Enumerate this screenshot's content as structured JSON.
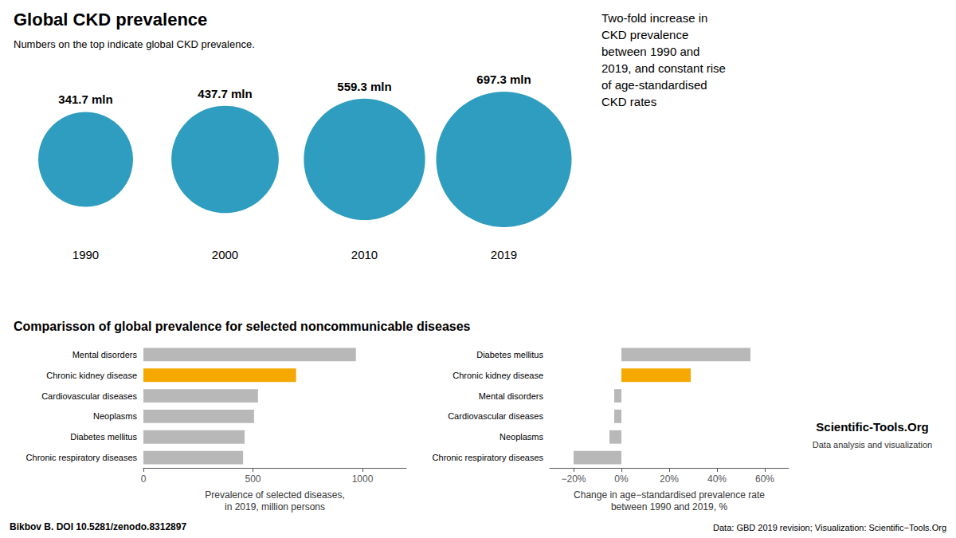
{
  "chart_data": [
    {
      "type": "bubble",
      "title": "Global CKD prevalence",
      "subtitle": "Numbers on the top indicate global CKD prevalence.",
      "categories": [
        "1990",
        "2000",
        "2010",
        "2019"
      ],
      "values": [
        341.7,
        437.7,
        559.3,
        697.3
      ],
      "value_labels": [
        "341.7 mln",
        "437.7 mln",
        "559.3 mln",
        "697.3 mln"
      ],
      "data_labels": true,
      "color": "#2e9dbf",
      "tick_labels": "x",
      "annotations": [
        "Two-fold increase in\nCKD prevalence\nbetween 1990 and\n2019, and constant rise\nof age-standardised\nCKD rates"
      ]
    },
    {
      "type": "bar",
      "orientation": "horizontal",
      "title": "Comparisson of global prevalence for selected noncommunicable diseases",
      "categories": [
        "Mental disorders",
        "Chronic kidney disease",
        "Cardiovascular diseases",
        "Neoplasms",
        "Diabetes mellitus",
        "Chronic respiratory diseases"
      ],
      "values": [
        970,
        697,
        523,
        505,
        462,
        455
      ],
      "colors": [
        "#b8b8b8",
        "#f5a800",
        "#b8b8b8",
        "#b8b8b8",
        "#b8b8b8",
        "#b8b8b8"
      ],
      "xlabel": "Prevalence of selected diseases,\nin 2019, million persons",
      "xlim": [
        0,
        1200
      ],
      "xticks": [
        0,
        500,
        1000
      ],
      "grid": false,
      "annotations": [
        "Bikbov B. DOI 10.5281/zenodo.8312897"
      ]
    },
    {
      "type": "bar",
      "orientation": "horizontal",
      "categories": [
        "Diabetes mellitus",
        "Chronic kidney disease",
        "Mental disorders",
        "Cardiovascular diseases",
        "Neoplasms",
        "Chronic respiratory diseases"
      ],
      "values": [
        54,
        29,
        -3,
        -3,
        -5,
        -20
      ],
      "colors": [
        "#b8b8b8",
        "#f5a800",
        "#b8b8b8",
        "#b8b8b8",
        "#b8b8b8",
        "#b8b8b8"
      ],
      "xlabel": "Change in age−standardised prevalence rate\nbetween 1990 and 2019, %",
      "xlim": [
        -30,
        70
      ],
      "xticks": [
        {
          "value": -20,
          "label": "−20%"
        },
        {
          "value": 0,
          "label": "0%"
        },
        {
          "value": 20,
          "label": "20%"
        },
        {
          "value": 40,
          "label": "40%"
        },
        {
          "value": 60,
          "label": "60%"
        }
      ],
      "grid": false,
      "annotations": [
        "Scientific-Tools.Org",
        "Data analysis and visualization",
        "Data: GBD 2019 revision; Visualization: Scientific−Tools.Org"
      ]
    }
  ]
}
